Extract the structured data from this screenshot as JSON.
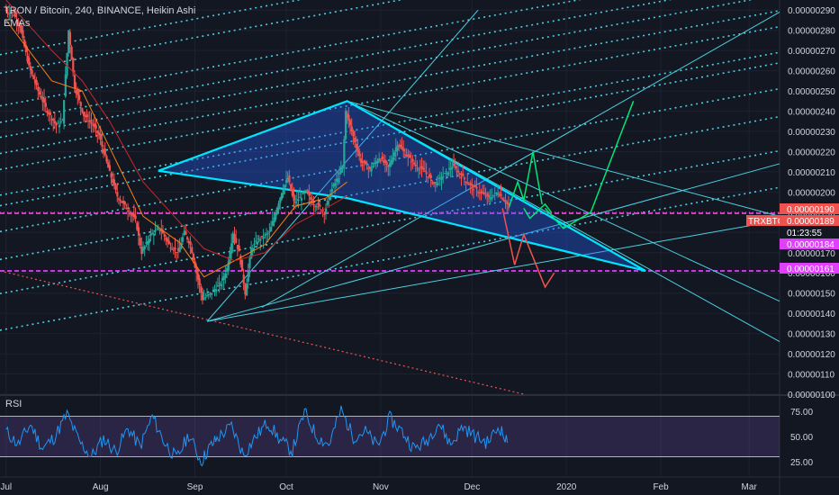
{
  "header": {
    "title": "TRON / Bitcoin, 240, BINANCE, Heikin Ashi",
    "indicator": "EMAs"
  },
  "rsi_label": "RSI",
  "chart_data": [
    {
      "type": "candlestick",
      "title": "TRON / Bitcoin, 240, BINANCE, Heikin Ashi",
      "ylim": [
        1e-06,
        2.9e-06
      ],
      "y_ticks": [
        "0.00000290",
        "0.00000280",
        "0.00000270",
        "0.00000260",
        "0.00000250",
        "0.00000240",
        "0.00000230",
        "0.00000220",
        "0.00000210",
        "0.00000200",
        "0.00000190",
        "0.00000180",
        "0.00000170",
        "0.00000160",
        "0.00000150",
        "0.00000140",
        "0.00000130",
        "0.00000120",
        "0.00000110",
        "0.00000100"
      ],
      "y_tick_values": [
        2.9,
        2.8,
        2.7,
        2.6,
        2.5,
        2.4,
        2.3,
        2.2,
        2.1,
        2.0,
        1.9,
        1.8,
        1.7,
        1.6,
        1.5,
        1.4,
        1.3,
        1.2,
        1.1,
        1.0
      ],
      "x_ticks": [
        "Jul",
        "Aug",
        "Sep",
        "Oct",
        "Nov",
        "Dec",
        "2020",
        "Feb",
        "Mar"
      ],
      "x_tick_days": [
        0,
        31,
        62,
        92,
        123,
        153,
        184,
        215,
        244
      ],
      "x_days_range": [
        -2,
        254
      ],
      "price_path": [
        [
          0,
          2.9
        ],
        [
          3,
          2.88
        ],
        [
          5,
          2.82
        ],
        [
          8,
          2.62
        ],
        [
          11,
          2.5
        ],
        [
          14,
          2.4
        ],
        [
          17,
          2.33
        ],
        [
          19,
          2.35
        ],
        [
          21,
          2.8
        ],
        [
          23,
          2.52
        ],
        [
          26,
          2.38
        ],
        [
          29,
          2.33
        ],
        [
          31,
          2.28
        ],
        [
          34,
          2.12
        ],
        [
          37,
          1.98
        ],
        [
          40,
          1.92
        ],
        [
          43,
          1.86
        ],
        [
          45,
          1.7
        ],
        [
          48,
          1.79
        ],
        [
          51,
          1.82
        ],
        [
          54,
          1.74
        ],
        [
          57,
          1.7
        ],
        [
          59,
          1.8
        ],
        [
          61,
          1.74
        ],
        [
          63,
          1.6
        ],
        [
          65,
          1.47
        ],
        [
          67,
          1.49
        ],
        [
          69,
          1.52
        ],
        [
          71,
          1.55
        ],
        [
          73,
          1.62
        ],
        [
          75,
          1.8
        ],
        [
          77,
          1.7
        ],
        [
          79,
          1.5
        ],
        [
          81,
          1.72
        ],
        [
          83,
          1.76
        ],
        [
          85,
          1.78
        ],
        [
          87,
          1.8
        ],
        [
          89,
          1.9
        ],
        [
          91,
          2.0
        ],
        [
          93,
          2.07
        ],
        [
          95,
          1.95
        ],
        [
          97,
          1.97
        ],
        [
          99,
          2.0
        ],
        [
          101,
          1.95
        ],
        [
          103,
          1.93
        ],
        [
          105,
          1.9
        ],
        [
          107,
          2.0
        ],
        [
          109,
          2.06
        ],
        [
          111,
          2.12
        ],
        [
          112,
          2.4
        ],
        [
          114,
          2.3
        ],
        [
          117,
          2.15
        ],
        [
          120,
          2.11
        ],
        [
          123,
          2.17
        ],
        [
          126,
          2.12
        ],
        [
          129,
          2.24
        ],
        [
          132,
          2.18
        ],
        [
          135,
          2.13
        ],
        [
          138,
          2.1
        ],
        [
          141,
          2.04
        ],
        [
          144,
          2.08
        ],
        [
          147,
          2.13
        ],
        [
          150,
          2.08
        ],
        [
          153,
          2.03
        ],
        [
          156,
          2.0
        ],
        [
          159,
          1.97
        ],
        [
          162,
          2.0
        ],
        [
          165,
          1.94
        ]
      ],
      "candle_colors": {
        "up": "#26a69a",
        "down": "#ef5350"
      },
      "price_tags": [
        {
          "label": "0.00000190",
          "value": 1.9,
          "color": "#ef5350"
        },
        {
          "label": "TRXBTC",
          "value": 1.89,
          "color": "#ef5350"
        },
        {
          "label": "0.00000189",
          "value": 1.89,
          "color": "#ef5350"
        },
        {
          "label": "01:23:55",
          "value": 1.84,
          "color": "#131722"
        },
        {
          "label": "0.00000184",
          "value": 1.78,
          "color": "#e040fb"
        },
        {
          "label": "0.00000161",
          "value": 1.61,
          "color": "#e040fb"
        }
      ],
      "horizontal_levels": [
        {
          "value": 1.895,
          "color": "#e040fb",
          "style": "dashed"
        },
        {
          "value": 1.61,
          "color": "#e040fb",
          "style": "dashed"
        },
        {
          "value": 1.9,
          "color": "#ef5350",
          "style": "dotted"
        }
      ],
      "triangle": [
        [
          50,
          2.105
        ],
        [
          112,
          2.45
        ],
        [
          210,
          1.61
        ],
        [
          112,
          1.97
        ]
      ],
      "triangle_color": "#00e5ff",
      "fan_lines": [
        {
          "from": [
            66,
            1.36
          ],
          "to": [
            155,
            2.9
          ],
          "color": "#4dd0e1"
        },
        {
          "from": [
            66,
            1.36
          ],
          "to": [
            254,
            2.14
          ],
          "color": "#4dd0e1"
        },
        {
          "from": [
            66,
            1.36
          ],
          "to": [
            254,
            1.86
          ],
          "color": "#4dd0e1"
        },
        {
          "from": [
            84,
            1.43
          ],
          "to": [
            254,
            2.89
          ],
          "color": "#4dd0e1"
        },
        {
          "from": [
            112,
            2.45
          ],
          "to": [
            254,
            1.46
          ],
          "color": "#4dd0e1"
        },
        {
          "from": [
            112,
            2.45
          ],
          "to": [
            254,
            1.26
          ],
          "color": "#4dd0e1"
        },
        {
          "from": [
            112,
            2.45
          ],
          "to": [
            254,
            1.88
          ],
          "color": "#4dd0e1"
        }
      ],
      "parallel_channel": {
        "color": "#4dd0e1",
        "style": "dotted",
        "start_day": -2,
        "end_day": 254,
        "slope_per_day": 0.00276,
        "offsets_at_day0": [
          2.685,
          2.593,
          2.432,
          2.35,
          2.276,
          2.196,
          2.117,
          1.99,
          1.938,
          1.81,
          1.672,
          1.503,
          1.322
        ]
      },
      "red_trend": {
        "from": [
          -2,
          1.61
        ],
        "to": [
          170,
          1.0
        ],
        "color": "#ef5350",
        "style": "dotted"
      },
      "projections": [
        {
          "color": "#00e676",
          "points": [
            [
              165,
              1.92
            ],
            [
              168,
              2.05
            ],
            [
              170,
              1.96
            ],
            [
              173,
              2.2
            ],
            [
              176,
              1.94
            ]
          ]
        },
        {
          "color": "#00e676",
          "points": [
            [
              170,
              1.92
            ],
            [
              172,
              1.87
            ],
            [
              177,
              1.94
            ],
            [
              179,
              1.9
            ]
          ]
        },
        {
          "color": "#00e676",
          "points": [
            [
              177,
              1.92
            ],
            [
              183,
              1.82
            ],
            [
              192,
              1.9
            ],
            [
              206,
              2.45
            ]
          ]
        },
        {
          "color": "#ef5350",
          "points": [
            [
              163,
              1.92
            ],
            [
              167,
              1.64
            ],
            [
              170,
              1.79
            ],
            [
              177,
              1.53
            ],
            [
              180,
              1.6
            ]
          ]
        }
      ],
      "ema_paths": [
        {
          "color": "#f57f17",
          "points": [
            [
              0,
              2.85
            ],
            [
              15,
              2.55
            ],
            [
              25,
              2.5
            ],
            [
              34,
              2.22
            ],
            [
              45,
              1.88
            ],
            [
              57,
              1.75
            ],
            [
              65,
              1.58
            ],
            [
              75,
              1.66
            ],
            [
              85,
              1.74
            ],
            [
              95,
              1.93
            ],
            [
              105,
              1.97
            ],
            [
              112,
              2.05
            ]
          ]
        },
        {
          "color": "#c62828",
          "points": [
            [
              0,
              2.95
            ],
            [
              15,
              2.7
            ],
            [
              25,
              2.55
            ],
            [
              34,
              2.35
            ],
            [
              45,
              2.05
            ],
            [
              57,
              1.85
            ],
            [
              65,
              1.72
            ],
            [
              75,
              1.66
            ],
            [
              85,
              1.7
            ],
            [
              95,
              1.84
            ],
            [
              105,
              1.92
            ],
            [
              112,
              1.98
            ]
          ]
        }
      ]
    },
    {
      "type": "line",
      "title": "RSI",
      "ylim": [
        10,
        90
      ],
      "y_ticks": [
        "75.00",
        "50.00",
        "25.00"
      ],
      "y_tick_values": [
        75,
        50,
        25
      ],
      "band": [
        30,
        70
      ],
      "line_color": "#2196f3",
      "rsi_path": [
        [
          0,
          55
        ],
        [
          4,
          42
        ],
        [
          8,
          62
        ],
        [
          12,
          38
        ],
        [
          16,
          50
        ],
        [
          20,
          72
        ],
        [
          24,
          45
        ],
        [
          28,
          30
        ],
        [
          32,
          48
        ],
        [
          36,
          35
        ],
        [
          40,
          58
        ],
        [
          44,
          40
        ],
        [
          48,
          70
        ],
        [
          52,
          44
        ],
        [
          56,
          28
        ],
        [
          60,
          52
        ],
        [
          64,
          25
        ],
        [
          67,
          40
        ],
        [
          70,
          50
        ],
        [
          74,
          60
        ],
        [
          78,
          32
        ],
        [
          82,
          50
        ],
        [
          86,
          64
        ],
        [
          90,
          46
        ],
        [
          94,
          36
        ],
        [
          98,
          74
        ],
        [
          102,
          50
        ],
        [
          106,
          42
        ],
        [
          110,
          76
        ],
        [
          114,
          50
        ],
        [
          118,
          55
        ],
        [
          122,
          40
        ],
        [
          126,
          68
        ],
        [
          130,
          55
        ],
        [
          134,
          38
        ],
        [
          138,
          45
        ],
        [
          142,
          64
        ],
        [
          146,
          42
        ],
        [
          150,
          60
        ],
        [
          154,
          50
        ],
        [
          158,
          44
        ],
        [
          162,
          60
        ],
        [
          165,
          40
        ]
      ]
    }
  ]
}
